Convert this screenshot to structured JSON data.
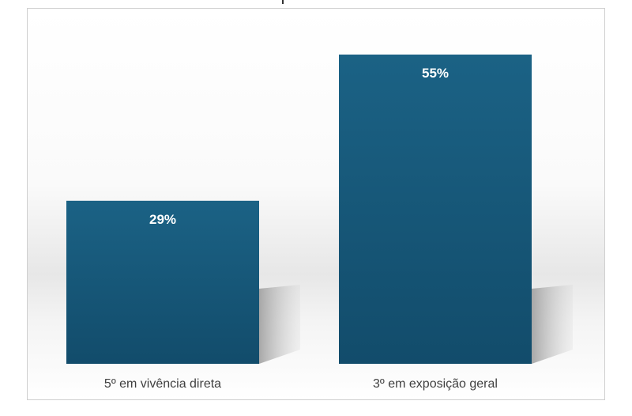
{
  "chart_data": {
    "type": "bar",
    "categories": [
      "5º em vivência direta",
      "3º em exposição geral"
    ],
    "values": [
      29,
      55
    ],
    "value_labels": [
      "29%",
      "55%"
    ],
    "ylim": [
      0,
      60
    ],
    "grid": false,
    "legend": "none",
    "colors": {
      "bar_top": "#1b6285",
      "bar_bottom": "#124c6b",
      "label": "#404040"
    }
  }
}
